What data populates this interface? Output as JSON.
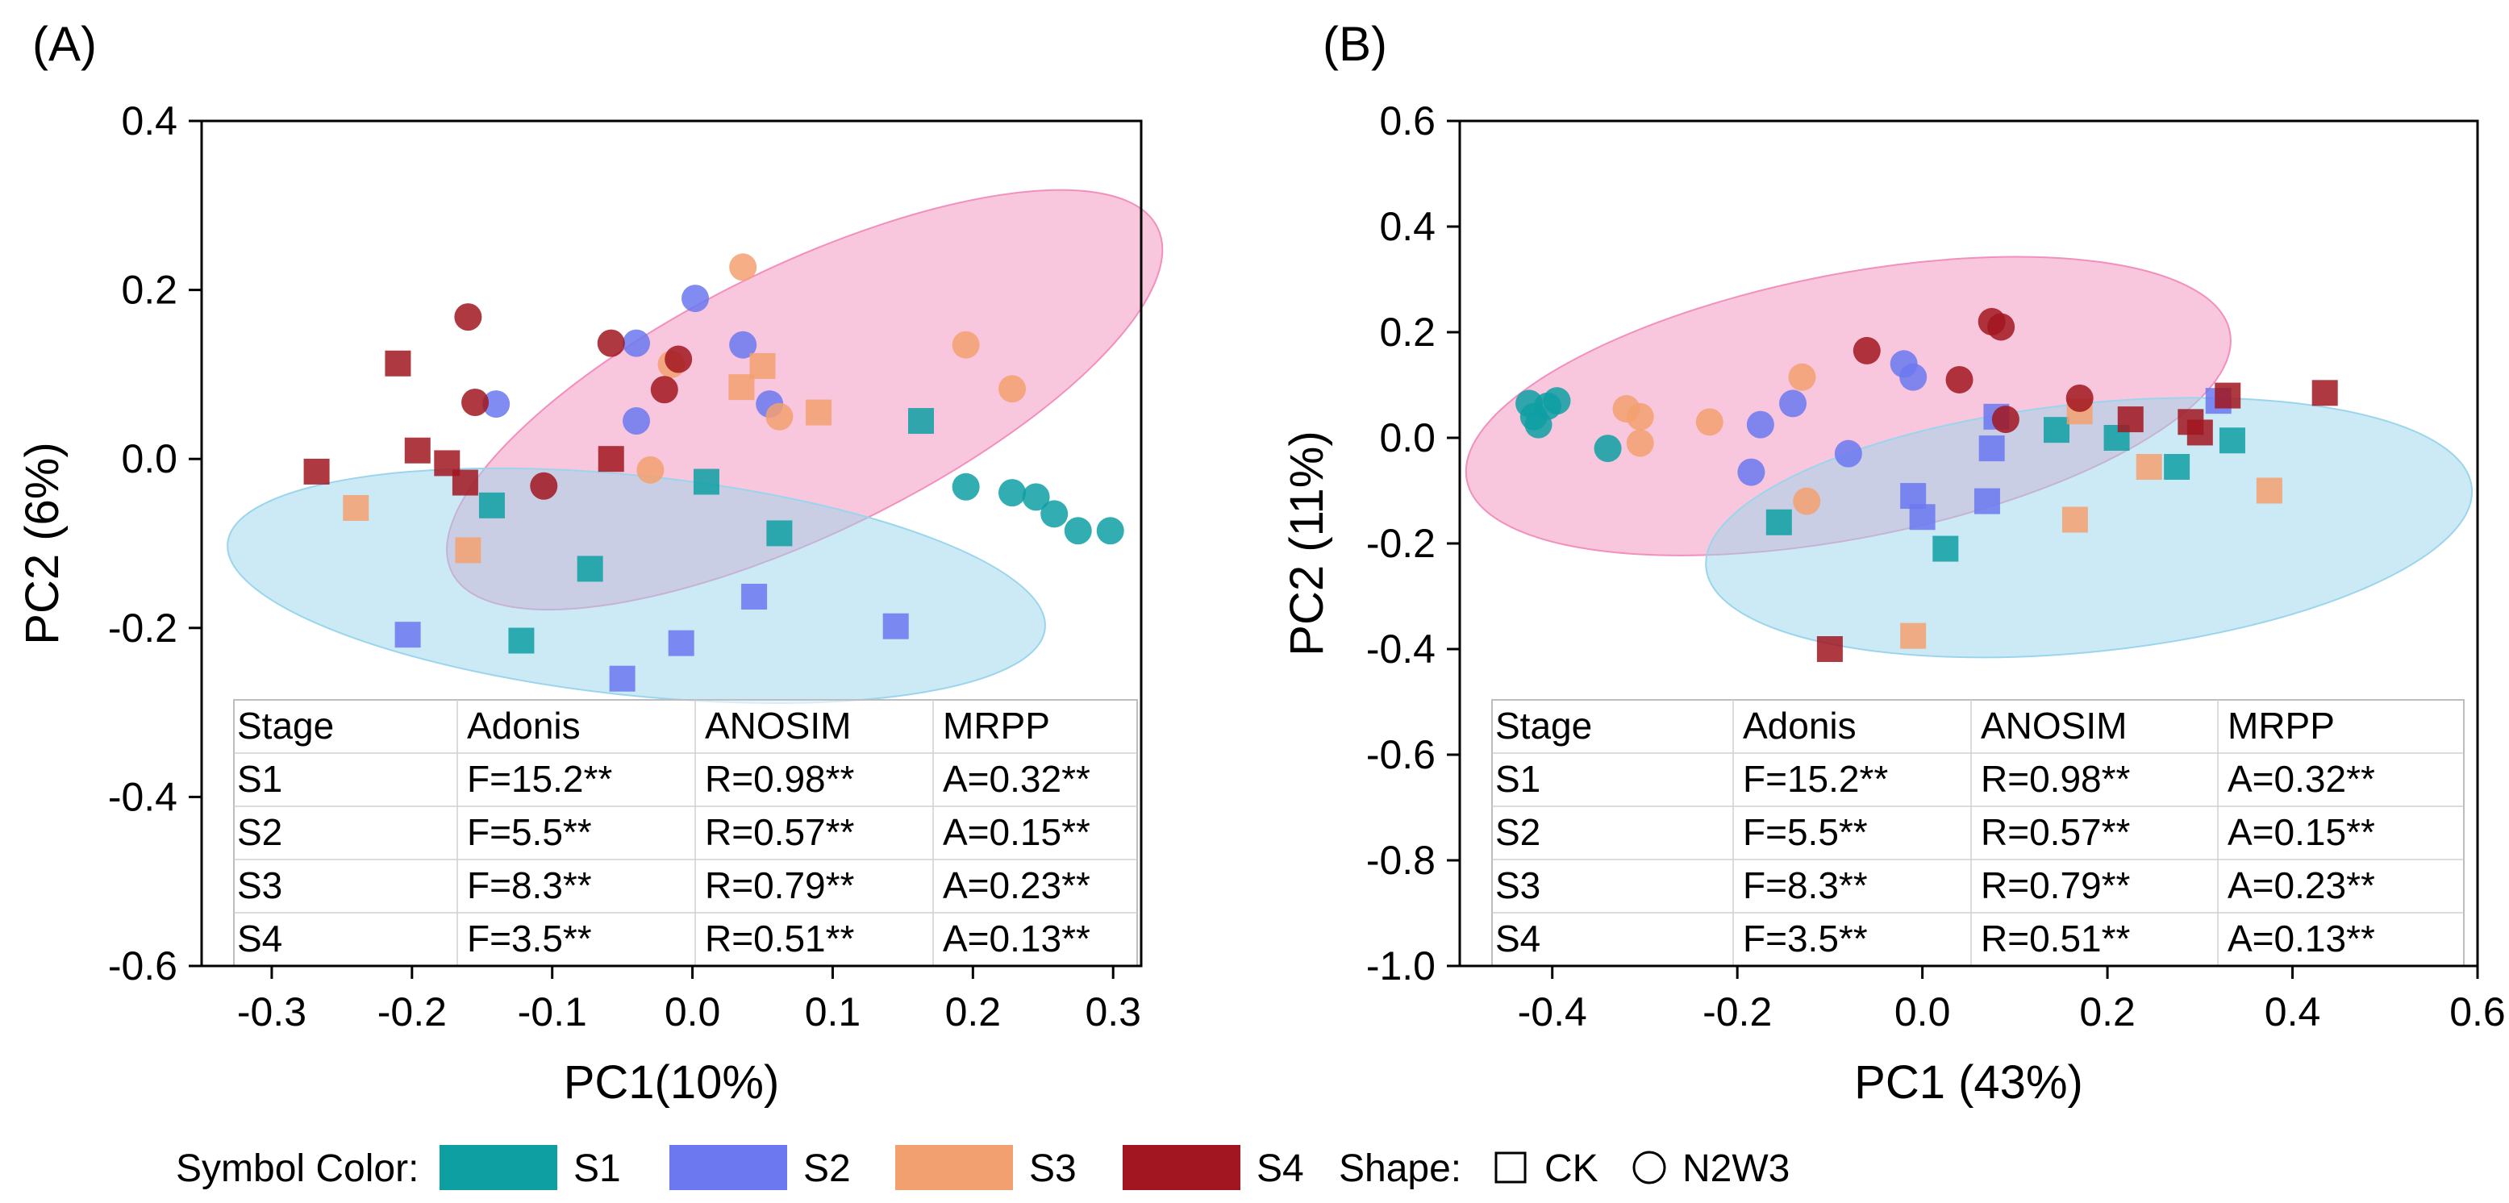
{
  "colors": {
    "S1": "#0e9fa3",
    "S2": "#6b78f0",
    "S3": "#f3a070",
    "S4": "#a11620",
    "pink_ellipse": "#f28fbd",
    "blue_ellipse": "#9ad5ec"
  },
  "legend": {
    "symbol_color_label": "Symbol Color:",
    "stages": [
      "S1",
      "S2",
      "S3",
      "S4"
    ],
    "shape_label": "Shape:",
    "shapes": [
      "CK",
      "N2W3"
    ]
  },
  "chart_data": [
    {
      "type": "scatter",
      "panel_label": "(A)",
      "xlabel": "PC1(10%)",
      "ylabel": "PC2 (6%)",
      "xlim": [
        -0.35,
        0.32
      ],
      "ylim": [
        -0.6,
        0.4
      ],
      "xticks": [
        "-0.3",
        "-0.2",
        "-0.1",
        "0.0",
        "0.1",
        "0.2",
        "0.3"
      ],
      "xtick_values": [
        -0.3,
        -0.2,
        -0.1,
        0.0,
        0.1,
        0.2,
        0.3
      ],
      "yticks": [
        "0.4",
        "0.2",
        "0.0",
        "-0.2",
        "-0.4",
        "-0.6"
      ],
      "ytick_values": [
        0.4,
        0.2,
        0.0,
        -0.2,
        -0.4,
        -0.6
      ],
      "ellipses": [
        {
          "group": "N2W3",
          "color": "pink",
          "cx": 0.08,
          "cy": 0.07,
          "rx": 0.28,
          "ry": 0.158,
          "angle": 26
        },
        {
          "group": "CK",
          "color": "blue",
          "cx": -0.04,
          "cy": -0.15,
          "rx": 0.293,
          "ry": 0.13,
          "angle": -6
        }
      ],
      "series": [
        {
          "name": "S1",
          "shape": "CK",
          "points": [
            [
              -0.143,
              -0.055
            ],
            [
              -0.122,
              -0.215
            ],
            [
              -0.073,
              -0.13
            ],
            [
              0.01,
              -0.027
            ],
            [
              0.062,
              -0.088
            ],
            [
              0.163,
              0.045
            ]
          ]
        },
        {
          "name": "S1",
          "shape": "N2W3",
          "points": [
            [
              0.195,
              -0.033
            ],
            [
              0.228,
              -0.04
            ],
            [
              0.245,
              -0.045
            ],
            [
              0.258,
              -0.065
            ],
            [
              0.275,
              -0.085
            ],
            [
              0.298,
              -0.085
            ]
          ]
        },
        {
          "name": "S2",
          "shape": "CK",
          "points": [
            [
              -0.203,
              -0.208
            ],
            [
              -0.05,
              -0.26
            ],
            [
              -0.008,
              -0.218
            ],
            [
              0.044,
              -0.163
            ],
            [
              0.145,
              -0.198
            ]
          ]
        },
        {
          "name": "S2",
          "shape": "N2W3",
          "points": [
            [
              -0.14,
              0.065
            ],
            [
              -0.04,
              0.045
            ],
            [
              -0.04,
              0.137
            ],
            [
              0.002,
              0.19
            ],
            [
              0.036,
              0.135
            ],
            [
              0.055,
              0.065
            ]
          ]
        },
        {
          "name": "S3",
          "shape": "CK",
          "points": [
            [
              -0.24,
              -0.058
            ],
            [
              -0.16,
              -0.108
            ],
            [
              0.035,
              0.085
            ],
            [
              0.05,
              0.11
            ],
            [
              0.09,
              0.055
            ]
          ]
        },
        {
          "name": "S3",
          "shape": "N2W3",
          "points": [
            [
              -0.015,
              0.112
            ],
            [
              -0.03,
              -0.013
            ],
            [
              0.062,
              0.05
            ],
            [
              0.036,
              0.227
            ],
            [
              0.195,
              0.135
            ],
            [
              0.228,
              0.083
            ]
          ]
        },
        {
          "name": "S4",
          "shape": "CK",
          "points": [
            [
              -0.268,
              -0.015
            ],
            [
              -0.21,
              0.113
            ],
            [
              -0.196,
              0.01
            ],
            [
              -0.175,
              -0.005
            ],
            [
              -0.162,
              -0.028
            ],
            [
              -0.058,
              0.0
            ]
          ]
        },
        {
          "name": "S4",
          "shape": "N2W3",
          "points": [
            [
              -0.16,
              0.168
            ],
            [
              -0.155,
              0.067
            ],
            [
              -0.106,
              -0.032
            ],
            [
              -0.058,
              0.137
            ],
            [
              -0.02,
              0.082
            ],
            [
              -0.01,
              0.118
            ]
          ]
        }
      ],
      "table": {
        "headers": [
          "Stage",
          "Adonis",
          "ANOSIM",
          "MRPP"
        ],
        "rows": [
          [
            "S1",
            "F=15.2**",
            "R=0.98**",
            "A=0.32**"
          ],
          [
            "S2",
            "F=5.5**",
            "R=0.57**",
            "A=0.15**"
          ],
          [
            "S3",
            "F=8.3**",
            "R=0.79**",
            "A=0.23**"
          ],
          [
            "S4",
            "F=3.5**",
            "R=0.51**",
            "A=0.13**"
          ]
        ]
      }
    },
    {
      "type": "scatter",
      "panel_label": "(B)",
      "xlabel": "PC1 (43%)",
      "ylabel": "PC2 (11%)",
      "xlim": [
        -0.5,
        0.6
      ],
      "ylim": [
        -1.0,
        0.6
      ],
      "xticks": [
        "-0.4",
        "-0.2",
        "0.0",
        "0.2",
        "0.4",
        "0.6"
      ],
      "xtick_values": [
        -0.4,
        -0.2,
        0.0,
        0.2,
        0.4,
        0.6
      ],
      "yticks": [
        "0.6",
        "0.4",
        "0.2",
        "0.0",
        "-0.2",
        "-0.4",
        "-0.6",
        "-0.8",
        "-1.0"
      ],
      "ytick_values": [
        0.6,
        0.4,
        0.2,
        0.0,
        -0.2,
        -0.4,
        -0.6,
        -0.8,
        -1.0
      ],
      "ellipses": [
        {
          "group": "N2W3",
          "color": "pink",
          "cx": -0.08,
          "cy": 0.06,
          "rx": 0.42,
          "ry": 0.25,
          "angle": 11
        },
        {
          "group": "CK",
          "color": "blue",
          "cx": 0.18,
          "cy": -0.17,
          "rx": 0.416,
          "ry": 0.235,
          "angle": 6
        }
      ],
      "series": [
        {
          "name": "S1",
          "shape": "CK",
          "points": [
            [
              -0.155,
              -0.16
            ],
            [
              0.025,
              -0.21
            ],
            [
              0.145,
              0.015
            ],
            [
              0.21,
              0.0
            ],
            [
              0.275,
              -0.055
            ],
            [
              0.335,
              -0.005
            ]
          ]
        },
        {
          "name": "S1",
          "shape": "N2W3",
          "points": [
            [
              -0.425,
              0.065
            ],
            [
              -0.42,
              0.04
            ],
            [
              -0.415,
              0.025
            ],
            [
              -0.405,
              0.06
            ],
            [
              -0.395,
              0.07
            ],
            [
              -0.34,
              -0.02
            ]
          ]
        },
        {
          "name": "S2",
          "shape": "CK",
          "points": [
            [
              -0.01,
              -0.11
            ],
            [
              0.0,
              -0.15
            ],
            [
              0.07,
              -0.12
            ],
            [
              0.075,
              -0.02
            ],
            [
              0.08,
              0.04
            ],
            [
              0.32,
              0.07
            ]
          ]
        },
        {
          "name": "S2",
          "shape": "N2W3",
          "points": [
            [
              -0.185,
              -0.065
            ],
            [
              -0.175,
              0.025
            ],
            [
              -0.14,
              0.065
            ],
            [
              -0.08,
              -0.03
            ],
            [
              -0.02,
              0.14
            ],
            [
              -0.01,
              0.115
            ]
          ]
        },
        {
          "name": "S3",
          "shape": "CK",
          "points": [
            [
              -0.01,
              -0.375
            ],
            [
              0.165,
              -0.155
            ],
            [
              0.17,
              0.05
            ],
            [
              0.245,
              -0.055
            ],
            [
              0.375,
              -0.1
            ]
          ]
        },
        {
          "name": "S3",
          "shape": "N2W3",
          "points": [
            [
              -0.32,
              0.055
            ],
            [
              -0.305,
              0.04
            ],
            [
              -0.305,
              -0.01
            ],
            [
              -0.23,
              0.03
            ],
            [
              -0.13,
              0.115
            ],
            [
              -0.125,
              -0.12
            ]
          ]
        },
        {
          "name": "S4",
          "shape": "CK",
          "points": [
            [
              -0.1,
              -0.4
            ],
            [
              0.225,
              0.035
            ],
            [
              0.29,
              0.03
            ],
            [
              0.3,
              0.01
            ],
            [
              0.33,
              0.08
            ],
            [
              0.435,
              0.085
            ]
          ]
        },
        {
          "name": "S4",
          "shape": "N2W3",
          "points": [
            [
              -0.06,
              0.165
            ],
            [
              0.04,
              0.11
            ],
            [
              0.075,
              0.22
            ],
            [
              0.085,
              0.21
            ],
            [
              0.09,
              0.035
            ],
            [
              0.17,
              0.075
            ]
          ]
        }
      ],
      "table": {
        "headers": [
          "Stage",
          "Adonis",
          "ANOSIM",
          "MRPP"
        ],
        "rows": [
          [
            "S1",
            "F=15.2**",
            "R=0.98**",
            "A=0.32**"
          ],
          [
            "S2",
            "F=5.5**",
            "R=0.57**",
            "A=0.15**"
          ],
          [
            "S3",
            "F=8.3**",
            "R=0.79**",
            "A=0.23**"
          ],
          [
            "S4",
            "F=3.5**",
            "R=0.51**",
            "A=0.13**"
          ]
        ]
      }
    }
  ]
}
